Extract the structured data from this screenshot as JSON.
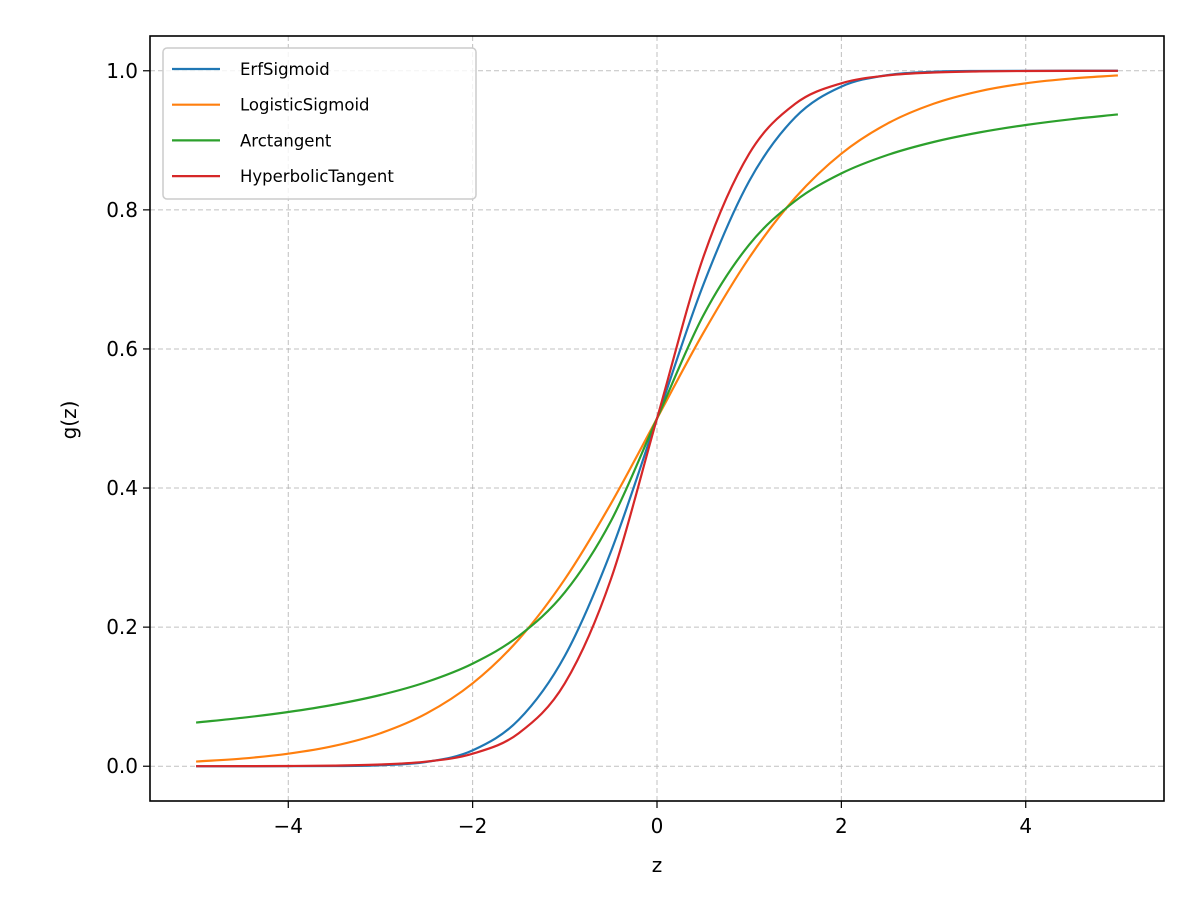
{
  "chart_data": {
    "type": "line",
    "title": "",
    "xlabel": "z",
    "ylabel": "g(z)",
    "xlim": [
      -5.5,
      5.5
    ],
    "ylim": [
      -0.05,
      1.05
    ],
    "grid": true,
    "legend_position": "top-left",
    "x_ticks": [
      -4,
      -2,
      0,
      2,
      4
    ],
    "x_tick_labels": [
      "−4",
      "−2",
      "0",
      "2",
      "4"
    ],
    "y_ticks": [
      0.0,
      0.2,
      0.4,
      0.6,
      0.8,
      1.0
    ],
    "y_tick_labels": [
      "0.0",
      "0.2",
      "0.4",
      "0.6",
      "0.8",
      "1.0"
    ],
    "x": [
      -5,
      -4.5,
      -4,
      -3.5,
      -3,
      -2.5,
      -2,
      -1.5,
      -1,
      -0.5,
      0,
      0.5,
      1,
      1.5,
      2,
      2.5,
      3,
      3.5,
      4,
      4.5,
      5
    ],
    "series": [
      {
        "name": "ErfSigmoid",
        "color": "#1f77b4",
        "values": [
          0.0,
          0.0,
          3e-05,
          0.00023,
          0.00135,
          0.00621,
          0.02275,
          0.06681,
          0.15866,
          0.30854,
          0.5,
          0.69146,
          0.84134,
          0.93319,
          0.97725,
          0.99379,
          0.99865,
          0.99977,
          0.99997,
          1.0,
          1.0
        ]
      },
      {
        "name": "LogisticSigmoid",
        "color": "#ff7f0e",
        "values": [
          0.00669,
          0.01099,
          0.01799,
          0.02931,
          0.04743,
          0.07586,
          0.1192,
          0.18243,
          0.26894,
          0.37754,
          0.5,
          0.62246,
          0.73106,
          0.81757,
          0.8808,
          0.92414,
          0.95257,
          0.97069,
          0.98201,
          0.98901,
          0.99331
        ]
      },
      {
        "name": "Arctangent",
        "color": "#2ca02c",
        "values": [
          0.06283,
          0.0696,
          0.07798,
          0.08859,
          0.10242,
          0.12112,
          0.14758,
          0.18717,
          0.25,
          0.35242,
          0.5,
          0.64758,
          0.75,
          0.81283,
          0.85242,
          0.87888,
          0.89758,
          0.91141,
          0.92202,
          0.9304,
          0.93717
        ]
      },
      {
        "name": "HyperbolicTangent",
        "color": "#d62728",
        "values": [
          5e-05,
          0.00012,
          0.00034,
          0.00091,
          0.00247,
          0.00669,
          0.01799,
          0.04743,
          0.1192,
          0.26894,
          0.5,
          0.73106,
          0.8808,
          0.95257,
          0.98201,
          0.99331,
          0.99753,
          0.99909,
          0.99966,
          0.99988,
          0.99995
        ]
      }
    ]
  }
}
